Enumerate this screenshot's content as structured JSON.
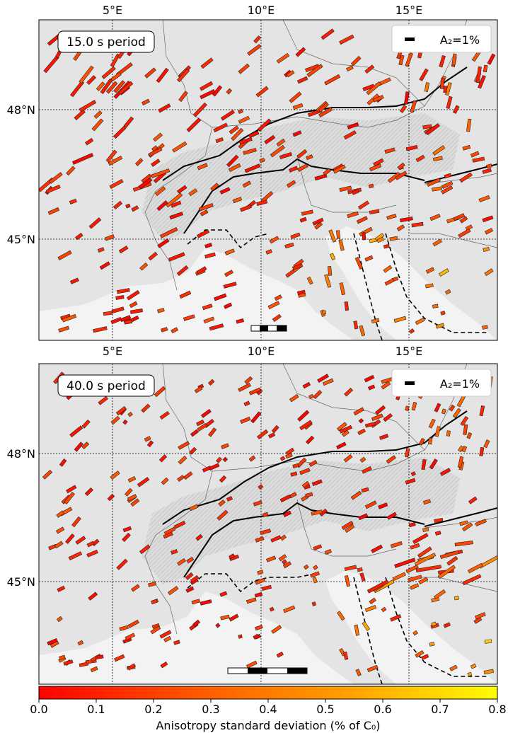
{
  "panels": [
    {
      "period_label": "15.0 s period",
      "legend_label": "A₂=1%",
      "lon_ticks": [
        "5°E",
        "10°E",
        "15°E"
      ],
      "lat_ticks": [
        "48°N",
        "45°N"
      ]
    },
    {
      "period_label": "40.0 s period",
      "legend_label": "A₂=1%",
      "lon_ticks": [
        "5°E",
        "10°E",
        "15°E"
      ],
      "lat_ticks": [
        "48°N",
        "45°N"
      ]
    }
  ],
  "colorbar": {
    "ticks": [
      "0.0",
      "0.1",
      "0.2",
      "0.3",
      "0.4",
      "0.5",
      "0.6",
      "0.7",
      "0.8"
    ],
    "range": [
      0.0,
      0.8
    ],
    "label": "Anisotropy standard deviation (% of C₀)",
    "colors": [
      "#ff0000",
      "#ff6a00",
      "#ffb000",
      "#ffff00"
    ]
  },
  "colors": {
    "land": "#e4e4e4",
    "alps_relief": "#c4c4c4",
    "sea": "#f2f2f2",
    "bar_stroke": "#222222",
    "faults": "#000000",
    "borders": "#555555"
  }
}
